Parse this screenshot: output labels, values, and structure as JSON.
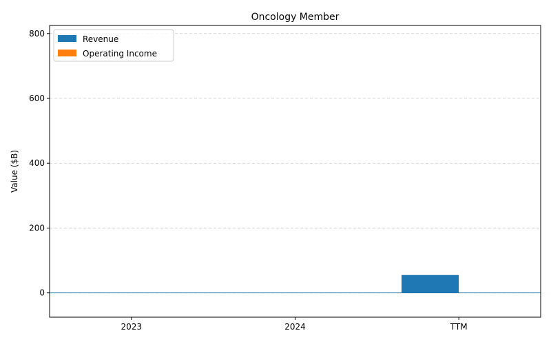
{
  "chart_data": {
    "type": "bar",
    "title": "Oncology Member",
    "xlabel": "",
    "ylabel": "Value ($B)",
    "categories": [
      "2023",
      "2024",
      "TTM"
    ],
    "series": [
      {
        "name": "Revenue",
        "color": "#1f77b4",
        "values": [
          0,
          0,
          55
        ]
      },
      {
        "name": "Operating Income",
        "color": "#ff7f0e",
        "values": [
          0,
          0,
          0
        ]
      }
    ],
    "ylim": [
      -75,
      825
    ],
    "yticks": [
      0,
      200,
      400,
      600,
      800
    ],
    "grid": "y-dashed",
    "legend_position": "top-left",
    "zero_line_color": "#1f77b4"
  }
}
